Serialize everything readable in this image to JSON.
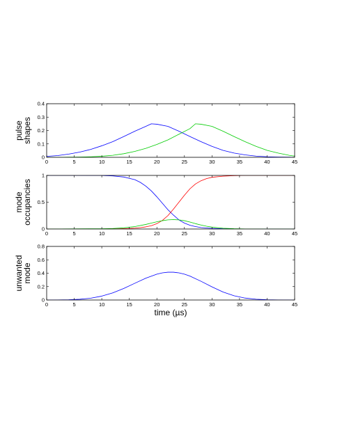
{
  "chart_data": [
    {
      "type": "line",
      "ylabel": "pulse\nshapes",
      "xlim": [
        0,
        45
      ],
      "ylim": [
        0,
        0.4
      ],
      "xticks": [
        0,
        5,
        10,
        15,
        20,
        25,
        30,
        35,
        40,
        45
      ],
      "yticks": [
        0,
        0.1,
        0.2,
        0.3,
        0.4
      ],
      "ytick_labels": [
        "0",
        "0.1",
        "0.2",
        "0.3",
        "0.4"
      ],
      "series": [
        {
          "color": "#0000ff",
          "x": [
            0,
            2,
            4,
            6,
            8,
            10,
            12,
            14,
            16,
            18,
            19,
            20,
            22,
            24,
            26,
            28,
            30,
            32,
            34,
            36,
            38,
            40,
            42,
            44,
            45
          ],
          "y": [
            0.007,
            0.013,
            0.024,
            0.039,
            0.059,
            0.086,
            0.117,
            0.155,
            0.195,
            0.231,
            0.25,
            0.247,
            0.231,
            0.195,
            0.155,
            0.117,
            0.082,
            0.052,
            0.032,
            0.018,
            0.009,
            0.004,
            0.002,
            0.001,
            0.0
          ]
        },
        {
          "color": "#00cc00",
          "x": [
            0,
            2,
            4,
            6,
            8,
            10,
            12,
            14,
            16,
            18,
            20,
            22,
            24,
            26,
            27,
            28,
            30,
            32,
            34,
            36,
            38,
            40,
            42,
            44,
            45
          ],
          "y": [
            0.0,
            0.0,
            0.001,
            0.002,
            0.004,
            0.008,
            0.015,
            0.027,
            0.044,
            0.067,
            0.096,
            0.13,
            0.172,
            0.214,
            0.25,
            0.247,
            0.231,
            0.195,
            0.155,
            0.117,
            0.082,
            0.052,
            0.032,
            0.015,
            0.009
          ]
        }
      ]
    },
    {
      "type": "line",
      "ylabel": "mode\noccupancies",
      "xlim": [
        0,
        45
      ],
      "ylim": [
        0,
        1
      ],
      "xticks": [
        0,
        5,
        10,
        15,
        20,
        25,
        30,
        35,
        40,
        45
      ],
      "yticks": [
        0,
        0.5,
        1
      ],
      "ytick_labels": [
        "0",
        "0.5",
        "1"
      ],
      "series": [
        {
          "color": "#0000ff",
          "x": [
            0,
            5,
            10,
            12,
            14,
            16,
            17,
            18,
            19,
            20,
            21,
            22,
            23,
            24,
            25,
            26,
            27,
            28,
            30,
            32,
            34,
            36,
            40,
            45
          ],
          "y": [
            1.0,
            1.0,
            0.998,
            0.99,
            0.97,
            0.92,
            0.87,
            0.8,
            0.71,
            0.6,
            0.48,
            0.36,
            0.26,
            0.17,
            0.11,
            0.07,
            0.045,
            0.028,
            0.011,
            0.004,
            0.001,
            0.0,
            0.0,
            0.0
          ]
        },
        {
          "color": "#ff0000",
          "x": [
            0,
            10,
            12,
            14,
            15,
            16,
            17,
            18,
            19,
            20,
            21,
            22,
            23,
            24,
            25,
            26,
            27,
            28,
            29,
            30,
            32,
            34,
            36,
            40,
            45
          ],
          "y": [
            0.0,
            0.0,
            0.002,
            0.006,
            0.01,
            0.016,
            0.026,
            0.04,
            0.062,
            0.1,
            0.16,
            0.25,
            0.37,
            0.5,
            0.63,
            0.75,
            0.84,
            0.9,
            0.94,
            0.965,
            0.985,
            0.995,
            1.0,
            1.0,
            1.0
          ]
        },
        {
          "color": "#00cc00",
          "x": [
            0,
            10,
            12,
            14,
            16,
            18,
            19,
            20,
            21,
            22,
            23,
            24,
            25,
            26,
            27,
            28,
            29,
            30,
            32,
            34,
            36,
            40,
            45
          ],
          "y": [
            0.0,
            0.005,
            0.01,
            0.022,
            0.045,
            0.085,
            0.11,
            0.135,
            0.155,
            0.17,
            0.175,
            0.17,
            0.155,
            0.13,
            0.1,
            0.075,
            0.052,
            0.035,
            0.015,
            0.006,
            0.002,
            0.0,
            0.0
          ]
        }
      ]
    },
    {
      "type": "line",
      "ylabel": "unwanted\nmode",
      "xlabel": "time (µs)",
      "xlim": [
        0,
        45
      ],
      "ylim": [
        0,
        0.8
      ],
      "xticks": [
        0,
        5,
        10,
        15,
        20,
        25,
        30,
        35,
        40,
        45
      ],
      "yticks": [
        0,
        0.2,
        0.4,
        0.6,
        0.8
      ],
      "ytick_labels": [
        "0",
        "0.2",
        "0.4",
        "0.6",
        "0.8"
      ],
      "series": [
        {
          "color": "#0000ff",
          "x": [
            0,
            2,
            4,
            6,
            8,
            10,
            12,
            14,
            16,
            18,
            20,
            21,
            22,
            23,
            24,
            25,
            26,
            28,
            30,
            32,
            34,
            36,
            38,
            40,
            42,
            45
          ],
          "y": [
            0.0,
            0.001,
            0.004,
            0.011,
            0.027,
            0.058,
            0.107,
            0.173,
            0.25,
            0.326,
            0.386,
            0.405,
            0.415,
            0.415,
            0.405,
            0.386,
            0.357,
            0.28,
            0.196,
            0.12,
            0.064,
            0.029,
            0.012,
            0.004,
            0.001,
            0.0
          ]
        }
      ]
    }
  ]
}
